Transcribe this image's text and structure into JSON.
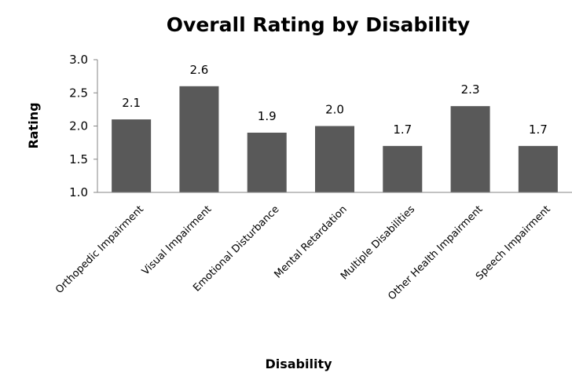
{
  "chart_data": {
    "type": "bar",
    "title": "Overall Rating by Disability",
    "xlabel": "Disability",
    "ylabel": "Rating",
    "categories": [
      "Orthopedic Impairment",
      "Visual Impairment",
      "Emotional Disturbance",
      "Mental Retardation",
      "Multiple Disabilities",
      "Other Health Impairment",
      "Speech Impairment"
    ],
    "values": [
      2.1,
      2.6,
      1.9,
      2.0,
      1.7,
      2.3,
      1.7
    ],
    "data_labels": [
      "2.1",
      "2.6",
      "1.9",
      "2.0",
      "1.7",
      "2.3",
      "1.7"
    ],
    "ylim": [
      1.0,
      3.0
    ],
    "yticks": [
      "1.0",
      "1.5",
      "2.0",
      "2.5",
      "3.0"
    ],
    "grid": false,
    "legend": "none",
    "bar_color": "#595959"
  }
}
